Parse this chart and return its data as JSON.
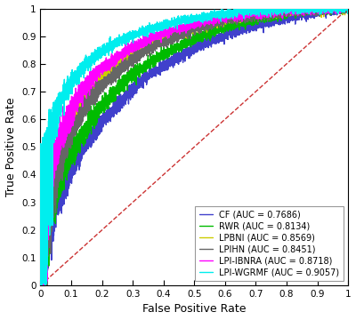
{
  "title": "",
  "xlabel": "False Positive Rate",
  "ylabel": "True Positive Rate",
  "xlim": [
    0,
    1
  ],
  "ylim": [
    0,
    1
  ],
  "xticks": [
    0,
    0.1,
    0.2,
    0.3,
    0.4,
    0.5,
    0.6,
    0.7,
    0.8,
    0.9,
    1
  ],
  "yticks": [
    0,
    0.1,
    0.2,
    0.3,
    0.4,
    0.5,
    0.6,
    0.7,
    0.8,
    0.9,
    1
  ],
  "background_color": "#ffffff",
  "methods": [
    {
      "name": "CF (AUC = 0.7686)",
      "auc": 0.7686,
      "color": "#4040cc",
      "lw": 1.0,
      "seed": 7
    },
    {
      "name": "RWR (AUC = 0.8134)",
      "auc": 0.8134,
      "color": "#00bb00",
      "lw": 1.0,
      "seed": 3
    },
    {
      "name": "LPBNI (AUC = 0.8569)",
      "auc": 0.8569,
      "color": "#cccc00",
      "lw": 1.0,
      "seed": 5
    },
    {
      "name": "LPIHN (AUC = 0.8451)",
      "auc": 0.8451,
      "color": "#666666",
      "lw": 1.0,
      "seed": 2
    },
    {
      "name": "LPI-IBNRA (AUC = 0.8718)",
      "auc": 0.8718,
      "color": "#ff00ff",
      "lw": 1.0,
      "seed": 4
    },
    {
      "name": "LPI-WGRMF (AUC = 0.9057)",
      "auc": 0.9057,
      "color": "#00eeee",
      "lw": 1.0,
      "seed": 6
    }
  ],
  "diagonal_color": "#cc3333",
  "diagonal_lw": 1.0,
  "legend_fontsize": 7.0,
  "axis_fontsize": 9,
  "tick_fontsize": 7.5,
  "figsize": [
    4.0,
    3.6
  ],
  "dpi": 100
}
